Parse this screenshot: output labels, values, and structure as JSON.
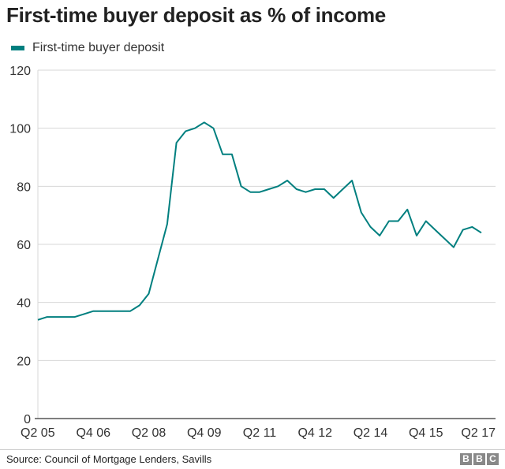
{
  "chart_data": {
    "type": "line",
    "title": "First-time buyer deposit as % of income",
    "xlabel": "",
    "ylabel": "",
    "ylim": [
      0,
      120
    ],
    "yticks": [
      0,
      20,
      40,
      60,
      80,
      100,
      120
    ],
    "xtick_labels": [
      "Q2 05",
      "Q4 06",
      "Q2 08",
      "Q4 09",
      "Q2 11",
      "Q4 12",
      "Q2 14",
      "Q4 15",
      "Q2 17"
    ],
    "xtick_indices": [
      0,
      6,
      12,
      18,
      24,
      30,
      36,
      42,
      48
    ],
    "grid": true,
    "legend": "top-left",
    "series": [
      {
        "name": "First-time buyer deposit",
        "color": "#007f7f",
        "values": [
          34,
          35,
          35,
          35,
          35,
          36,
          37,
          37,
          37,
          37,
          37,
          39,
          43,
          55,
          67,
          95,
          99,
          100,
          102,
          100,
          91,
          91,
          80,
          78,
          78,
          79,
          80,
          82,
          79,
          78,
          79,
          79,
          76,
          79,
          82,
          71,
          66,
          63,
          68,
          68,
          72,
          63,
          68,
          65,
          62,
          59,
          65,
          66,
          64
        ]
      }
    ]
  },
  "footer": {
    "source": "Source: Council of Mortgage Lenders, Savills",
    "logo_letters": [
      "B",
      "B",
      "C"
    ]
  }
}
